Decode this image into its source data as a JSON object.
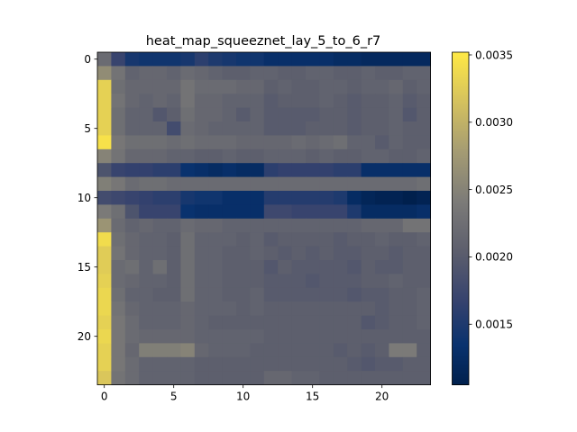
{
  "chart_data": {
    "type": "heatmap",
    "title": "heat_map_squeeznet_lay_5_to_6_r7",
    "xlabel": "",
    "ylabel": "",
    "colormap": "cividis",
    "rows": 24,
    "cols": 24,
    "xticks": [
      0,
      5,
      10,
      15,
      20
    ],
    "yticks": [
      0,
      5,
      10,
      15,
      20
    ],
    "colorbar": {
      "vmin": 0.00105,
      "vmax": 0.00352,
      "ticks": [
        "0.0015",
        "0.0020",
        "0.0025",
        "0.0030",
        "0.0035"
      ],
      "tick_values": [
        0.0015,
        0.002,
        0.0025,
        0.003,
        0.0035
      ]
    },
    "values": [
      [
        0.0022,
        0.0017,
        0.00145,
        0.0014,
        0.0014,
        0.0014,
        0.00145,
        0.0016,
        0.0015,
        0.00145,
        0.0014,
        0.0014,
        0.0013,
        0.0013,
        0.0013,
        0.0013,
        0.0013,
        0.00125,
        0.00125,
        0.0012,
        0.0012,
        0.0012,
        0.0012,
        0.0012
      ],
      [
        0.0026,
        0.0023,
        0.0021,
        0.00215,
        0.00215,
        0.0021,
        0.0022,
        0.00215,
        0.0021,
        0.00205,
        0.00205,
        0.0021,
        0.0021,
        0.00205,
        0.00205,
        0.0021,
        0.0021,
        0.00205,
        0.00205,
        0.0021,
        0.00205,
        0.00205,
        0.0021,
        0.0021
      ],
      [
        0.0033,
        0.00225,
        0.00215,
        0.00215,
        0.00215,
        0.00215,
        0.0023,
        0.0022,
        0.0022,
        0.0022,
        0.00215,
        0.00215,
        0.00205,
        0.0021,
        0.00205,
        0.00205,
        0.0021,
        0.0021,
        0.00205,
        0.0021,
        0.0021,
        0.00215,
        0.00205,
        0.0021
      ],
      [
        0.0033,
        0.0023,
        0.00215,
        0.0021,
        0.00215,
        0.0021,
        0.0023,
        0.00215,
        0.00215,
        0.0021,
        0.0021,
        0.0021,
        0.002,
        0.00205,
        0.00205,
        0.00205,
        0.0021,
        0.00205,
        0.002,
        0.00205,
        0.00205,
        0.0021,
        0.002,
        0.00205
      ],
      [
        0.0033,
        0.00225,
        0.0021,
        0.0021,
        0.00195,
        0.00205,
        0.00225,
        0.00215,
        0.00215,
        0.0021,
        0.002,
        0.0021,
        0.002,
        0.002,
        0.002,
        0.002,
        0.00205,
        0.00205,
        0.002,
        0.00205,
        0.00205,
        0.0021,
        0.00195,
        0.00205
      ],
      [
        0.0033,
        0.00225,
        0.0021,
        0.0021,
        0.0021,
        0.0018,
        0.0022,
        0.00215,
        0.0021,
        0.0021,
        0.0021,
        0.0021,
        0.002,
        0.002,
        0.002,
        0.00205,
        0.00205,
        0.00205,
        0.002,
        0.00205,
        0.00205,
        0.0021,
        0.00205,
        0.00205
      ],
      [
        0.00345,
        0.00235,
        0.00225,
        0.00225,
        0.00225,
        0.0022,
        0.00225,
        0.0022,
        0.0022,
        0.0022,
        0.00215,
        0.00215,
        0.00215,
        0.00215,
        0.0022,
        0.00215,
        0.0022,
        0.00225,
        0.0021,
        0.0021,
        0.002,
        0.0021,
        0.00205,
        0.00205
      ],
      [
        0.0025,
        0.0023,
        0.00215,
        0.00215,
        0.00215,
        0.0021,
        0.0021,
        0.00205,
        0.00205,
        0.0021,
        0.00205,
        0.00205,
        0.0021,
        0.0021,
        0.0021,
        0.00205,
        0.0021,
        0.00205,
        0.00205,
        0.0021,
        0.0021,
        0.00205,
        0.00205,
        0.0021
      ],
      [
        0.0019,
        0.0017,
        0.00165,
        0.00165,
        0.0016,
        0.0016,
        0.00135,
        0.0013,
        0.00125,
        0.0013,
        0.00125,
        0.00125,
        0.0016,
        0.00165,
        0.00165,
        0.00165,
        0.00165,
        0.0016,
        0.0016,
        0.0013,
        0.0013,
        0.0013,
        0.0013,
        0.0013
      ],
      [
        0.00245,
        0.00235,
        0.0022,
        0.00225,
        0.00225,
        0.0022,
        0.0022,
        0.0022,
        0.0022,
        0.0022,
        0.0022,
        0.0022,
        0.0022,
        0.0022,
        0.0022,
        0.0022,
        0.0022,
        0.0022,
        0.0022,
        0.0022,
        0.0022,
        0.0022,
        0.0022,
        0.00225
      ],
      [
        0.0018,
        0.00175,
        0.0017,
        0.00165,
        0.0016,
        0.0016,
        0.00145,
        0.0014,
        0.0014,
        0.0013,
        0.0013,
        0.0013,
        0.00155,
        0.00155,
        0.00155,
        0.00155,
        0.00155,
        0.0015,
        0.00125,
        0.00115,
        0.0011,
        0.0011,
        0.00105,
        0.0011
      ],
      [
        0.0024,
        0.00225,
        0.0019,
        0.0017,
        0.0017,
        0.0017,
        0.00135,
        0.0013,
        0.0013,
        0.0013,
        0.0013,
        0.0013,
        0.00175,
        0.00175,
        0.0017,
        0.0017,
        0.0017,
        0.0017,
        0.0015,
        0.00125,
        0.00125,
        0.00125,
        0.00125,
        0.0013
      ],
      [
        0.0027,
        0.0022,
        0.0021,
        0.00215,
        0.0021,
        0.0021,
        0.0022,
        0.00215,
        0.00215,
        0.0021,
        0.0021,
        0.0021,
        0.0021,
        0.0021,
        0.0021,
        0.0021,
        0.0021,
        0.0021,
        0.0021,
        0.00215,
        0.00215,
        0.00215,
        0.0023,
        0.0023
      ],
      [
        0.0034,
        0.00225,
        0.00215,
        0.0021,
        0.0021,
        0.00205,
        0.00225,
        0.0021,
        0.0021,
        0.0021,
        0.00205,
        0.0021,
        0.002,
        0.00205,
        0.00205,
        0.00205,
        0.00205,
        0.002,
        0.00205,
        0.00205,
        0.0021,
        0.00205,
        0.00205,
        0.0021
      ],
      [
        0.00325,
        0.0023,
        0.00215,
        0.0021,
        0.0021,
        0.00205,
        0.00225,
        0.0021,
        0.0021,
        0.00205,
        0.00205,
        0.0021,
        0.00205,
        0.002,
        0.00205,
        0.002,
        0.00205,
        0.002,
        0.002,
        0.00205,
        0.00205,
        0.002,
        0.00205,
        0.00205
      ],
      [
        0.00325,
        0.0022,
        0.00225,
        0.0021,
        0.00225,
        0.00205,
        0.00225,
        0.0021,
        0.0021,
        0.00205,
        0.00205,
        0.00205,
        0.00195,
        0.00205,
        0.002,
        0.002,
        0.002,
        0.002,
        0.00195,
        0.00205,
        0.002,
        0.002,
        0.00205,
        0.00205
      ],
      [
        0.0033,
        0.0022,
        0.00215,
        0.0021,
        0.0021,
        0.00205,
        0.00225,
        0.0021,
        0.0021,
        0.00205,
        0.00205,
        0.00205,
        0.002,
        0.002,
        0.002,
        0.00195,
        0.002,
        0.002,
        0.002,
        0.00205,
        0.00205,
        0.0021,
        0.00205,
        0.00205
      ],
      [
        0.00335,
        0.00225,
        0.0021,
        0.0021,
        0.00205,
        0.00205,
        0.00225,
        0.0021,
        0.0021,
        0.00205,
        0.00205,
        0.0021,
        0.002,
        0.002,
        0.002,
        0.002,
        0.002,
        0.002,
        0.00195,
        0.002,
        0.002,
        0.00205,
        0.00205,
        0.0021
      ],
      [
        0.00335,
        0.0023,
        0.00215,
        0.0021,
        0.0021,
        0.0021,
        0.00215,
        0.0021,
        0.0021,
        0.0021,
        0.00205,
        0.0021,
        0.00205,
        0.00205,
        0.00205,
        0.00205,
        0.00205,
        0.00205,
        0.00205,
        0.00205,
        0.002,
        0.00205,
        0.00205,
        0.0021
      ],
      [
        0.0033,
        0.00235,
        0.0022,
        0.0021,
        0.0021,
        0.0021,
        0.00215,
        0.0021,
        0.00205,
        0.00205,
        0.00205,
        0.00205,
        0.00205,
        0.00205,
        0.00205,
        0.00205,
        0.00205,
        0.00205,
        0.00205,
        0.00195,
        0.002,
        0.00205,
        0.00205,
        0.0021
      ],
      [
        0.00335,
        0.00235,
        0.0022,
        0.00215,
        0.00215,
        0.00215,
        0.00215,
        0.0021,
        0.0021,
        0.0021,
        0.0021,
        0.0021,
        0.00205,
        0.00205,
        0.00205,
        0.00205,
        0.00205,
        0.00205,
        0.00205,
        0.00205,
        0.00205,
        0.00205,
        0.00205,
        0.00205
      ],
      [
        0.0033,
        0.00235,
        0.00215,
        0.00245,
        0.00245,
        0.00245,
        0.0025,
        0.00215,
        0.0021,
        0.0021,
        0.0021,
        0.00205,
        0.00205,
        0.00205,
        0.00205,
        0.00205,
        0.00205,
        0.002,
        0.00205,
        0.002,
        0.00205,
        0.0024,
        0.0024,
        0.00205
      ],
      [
        0.0033,
        0.00235,
        0.0022,
        0.0021,
        0.0021,
        0.0021,
        0.0021,
        0.00205,
        0.00205,
        0.00205,
        0.00205,
        0.00205,
        0.00205,
        0.00205,
        0.00205,
        0.00205,
        0.00205,
        0.00205,
        0.002,
        0.00195,
        0.002,
        0.002,
        0.00205,
        0.00205
      ],
      [
        0.0032,
        0.0023,
        0.0022,
        0.0021,
        0.0021,
        0.0021,
        0.0021,
        0.00205,
        0.00205,
        0.00205,
        0.00205,
        0.00205,
        0.00215,
        0.00215,
        0.0021,
        0.0021,
        0.00205,
        0.00205,
        0.00205,
        0.00205,
        0.00205,
        0.00205,
        0.00205,
        0.00205
      ]
    ]
  }
}
